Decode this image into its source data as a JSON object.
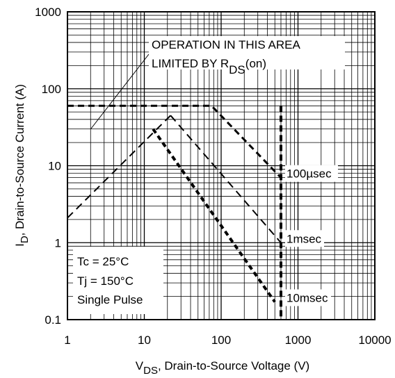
{
  "chart_data": {
    "type": "line",
    "x_scale": "log",
    "y_scale": "log",
    "xlim": [
      1,
      10000
    ],
    "ylim": [
      0.1,
      1000
    ],
    "grid": true,
    "x_ticks": [
      "1",
      "10",
      "100",
      "1000",
      "10000"
    ],
    "y_ticks": [
      "0.1",
      "1",
      "10",
      "100",
      "1000"
    ],
    "xlabel": {
      "main": "V",
      "sub": "DS",
      "rest": ", Drain-to-Source Voltage (V)"
    },
    "ylabel": {
      "main": "I",
      "sub": "D",
      "rest": ",  Drain-to-Source Current (A)"
    },
    "annotation": {
      "line1": "OPERATION IN THIS AREA",
      "line2_main": "LIMITED BY R",
      "line2_sub": "DS",
      "line2_end": "(on)"
    },
    "conditions": [
      "Tc = 25°C",
      "Tj = 150°C",
      "Single Pulse"
    ],
    "limit_lines": {
      "current_limit_A": 60,
      "voltage_limit_V": 600
    },
    "series": [
      {
        "name": "",
        "points": [
          [
            1,
            2.1
          ],
          [
            22,
            45
          ]
        ]
      },
      {
        "name": "100µsec",
        "points": [
          [
            1,
            60
          ],
          [
            75,
            60
          ],
          [
            600,
            7
          ]
        ]
      },
      {
        "name": "1msec",
        "points": [
          [
            22,
            45
          ],
          [
            600,
            1.0
          ]
        ]
      },
      {
        "name": "10msec",
        "points": [
          [
            13,
            30
          ],
          [
            500,
            0.17
          ]
        ]
      }
    ],
    "series_labels": [
      {
        "series": "100µsec",
        "x": 600,
        "y": 7
      },
      {
        "series": "1msec",
        "x": 600,
        "y": 1.0
      },
      {
        "series": "10msec",
        "x": 600,
        "y": 0.17
      }
    ]
  }
}
